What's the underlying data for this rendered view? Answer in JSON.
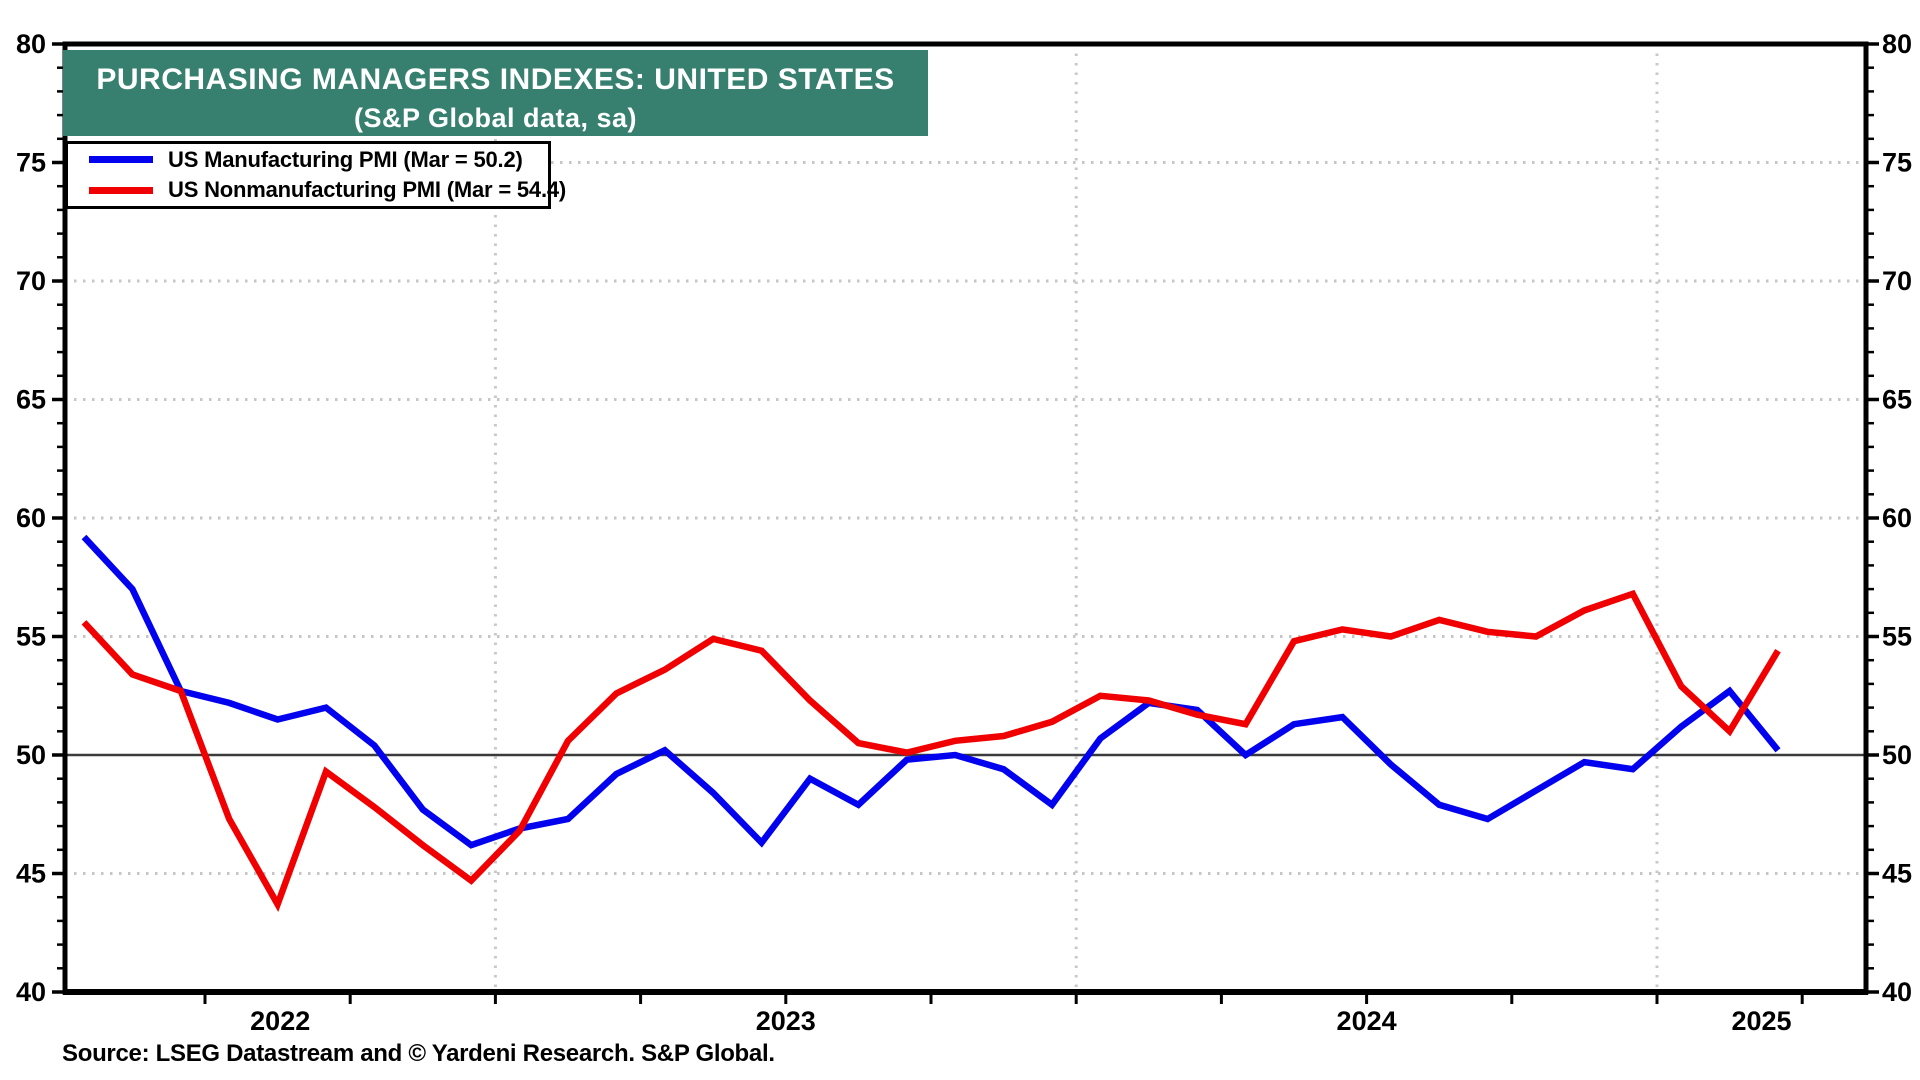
{
  "title": {
    "line1": "PURCHASING MANAGERS INDEXES: UNITED STATES",
    "line2": "(S&P Global data, sa)"
  },
  "legend": [
    {
      "label": "US Manufacturing PMI (Mar = 50.2)",
      "color": "#0202EE"
    },
    {
      "label": "US Nonmanufacturing PMI (Mar = 54.4)",
      "color": "#F00000"
    }
  ],
  "source": {
    "text": "Source: LSEG Datastream and © Yardeni Research. S&P Global."
  },
  "colors": {
    "banner": "#37806F",
    "manufacturing_line": "#0202EE",
    "nonmanufacturing_line": "#F00000",
    "dotted_grid": "#c6c6c6",
    "year_grid": "#c9c9c9",
    "reference_line_50": "#3b3b3b",
    "axis": "#000000"
  },
  "chart_data": {
    "type": "line",
    "title": "PURCHASING MANAGERS INDEXES: UNITED STATES (S&P Global data, sa)",
    "ylim": [
      40,
      80
    ],
    "y_tick_step": 5,
    "y_minor_step": 1,
    "y_tick_labels": [
      "40",
      "45",
      "50",
      "55",
      "60",
      "65",
      "70",
      "75",
      "80"
    ],
    "reference_line": 50,
    "grid": {
      "horizontal_dotted": [
        45,
        55,
        60,
        65,
        70,
        75
      ],
      "vertical_dashed_at": [
        "2023-01",
        "2024-01",
        "2025-01"
      ]
    },
    "x_year_labels": [
      "2022",
      "2023",
      "2024",
      "2025"
    ],
    "x": [
      "2022-04",
      "2022-05",
      "2022-06",
      "2022-07",
      "2022-08",
      "2022-09",
      "2022-10",
      "2022-11",
      "2022-12",
      "2023-01",
      "2023-02",
      "2023-03",
      "2023-04",
      "2023-05",
      "2023-06",
      "2023-07",
      "2023-08",
      "2023-09",
      "2023-10",
      "2023-11",
      "2023-12",
      "2024-01",
      "2024-02",
      "2024-03",
      "2024-04",
      "2024-05",
      "2024-06",
      "2024-07",
      "2024-08",
      "2024-09",
      "2024-10",
      "2024-11",
      "2024-12",
      "2025-01",
      "2025-02",
      "2025-03"
    ],
    "series": [
      {
        "name": "US Manufacturing PMI",
        "color": "#0202EE",
        "values": [
          59.2,
          57.0,
          52.7,
          52.2,
          51.5,
          52.0,
          50.4,
          47.7,
          46.2,
          46.9,
          47.3,
          49.2,
          50.2,
          48.4,
          46.3,
          49.0,
          47.9,
          49.8,
          50.0,
          49.4,
          47.9,
          50.7,
          52.2,
          51.9,
          50.0,
          51.3,
          51.6,
          49.6,
          47.9,
          47.3,
          48.5,
          49.7,
          49.4,
          51.2,
          52.7,
          50.2
        ]
      },
      {
        "name": "US Nonmanufacturing PMI",
        "color": "#F00000",
        "values": [
          55.6,
          53.4,
          52.7,
          47.3,
          43.7,
          49.3,
          47.8,
          46.2,
          44.7,
          46.8,
          50.6,
          52.6,
          53.6,
          54.9,
          54.4,
          52.3,
          50.5,
          50.1,
          50.6,
          50.8,
          51.4,
          52.5,
          52.3,
          51.7,
          51.3,
          54.8,
          55.3,
          55.0,
          55.7,
          55.2,
          55.0,
          56.1,
          56.8,
          52.9,
          51.0,
          54.4
        ]
      }
    ]
  }
}
